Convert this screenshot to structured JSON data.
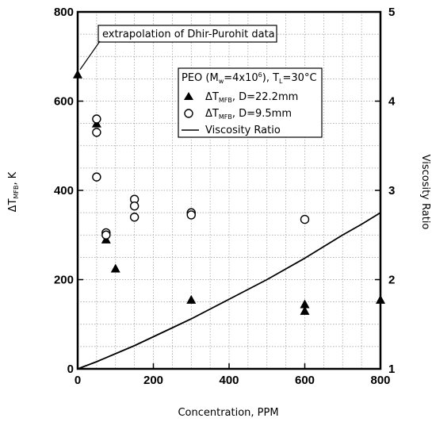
{
  "chart_data": {
    "type": "scatter",
    "xlabel": "Concentration, PPM",
    "ylabel_left": {
      "main": "ΔT",
      "sub": "MFB",
      "unit": ", K"
    },
    "ylabel_right": "Viscosity Ratio",
    "xlim": [
      0,
      800
    ],
    "ylim_left": [
      0,
      800
    ],
    "ylim_right": [
      1,
      5
    ],
    "x_ticks": [
      "0",
      "200",
      "400",
      "600",
      "800"
    ],
    "y_ticks_left": [
      "0",
      "200",
      "400",
      "600",
      "800"
    ],
    "y_ticks_right": [
      "1",
      "2",
      "3",
      "4",
      "5"
    ],
    "grid": true,
    "legend_placement": "upper-right",
    "legend": {
      "header": {
        "a": "PEO (M",
        "a_sub": "w",
        "b": "=4x10",
        "b_sup": "6",
        "c": "), T",
        "c_sub": "L",
        "d": "=30°C"
      },
      "entries": [
        {
          "prefix": "ΔT",
          "sub": "MFB",
          "suffix": ", D=22.2mm",
          "marker": "filled-triangle"
        },
        {
          "prefix": "ΔT",
          "sub": "MFB",
          "suffix": ", D=9.5mm",
          "marker": "open-circle"
        },
        {
          "label": "Viscosity Ratio",
          "marker": "line"
        }
      ]
    },
    "annotation": {
      "text": "extrapolation of Dhir-Purohit data",
      "x": 0,
      "y": 660
    },
    "series": [
      {
        "marker": "filled-triangle",
        "axis": "left",
        "x": [
          50,
          75,
          100,
          300,
          600,
          600,
          800
        ],
        "y": [
          550,
          290,
          225,
          155,
          145,
          130,
          155
        ]
      },
      {
        "marker": "open-circle",
        "axis": "left",
        "x": [
          50,
          50,
          50,
          75,
          75,
          150,
          150,
          150,
          300,
          300,
          600
        ],
        "y": [
          560,
          530,
          430,
          305,
          300,
          380,
          365,
          340,
          350,
          345,
          335
        ]
      },
      {
        "marker": "line",
        "axis": "right",
        "x": [
          0,
          50,
          100,
          150,
          200,
          250,
          300,
          350,
          400,
          450,
          500,
          550,
          600,
          650,
          700,
          750,
          800
        ],
        "y": [
          1.0,
          1.08,
          1.17,
          1.26,
          1.36,
          1.46,
          1.56,
          1.67,
          1.78,
          1.89,
          2.0,
          2.12,
          2.24,
          2.37,
          2.5,
          2.62,
          2.75
        ]
      }
    ]
  }
}
